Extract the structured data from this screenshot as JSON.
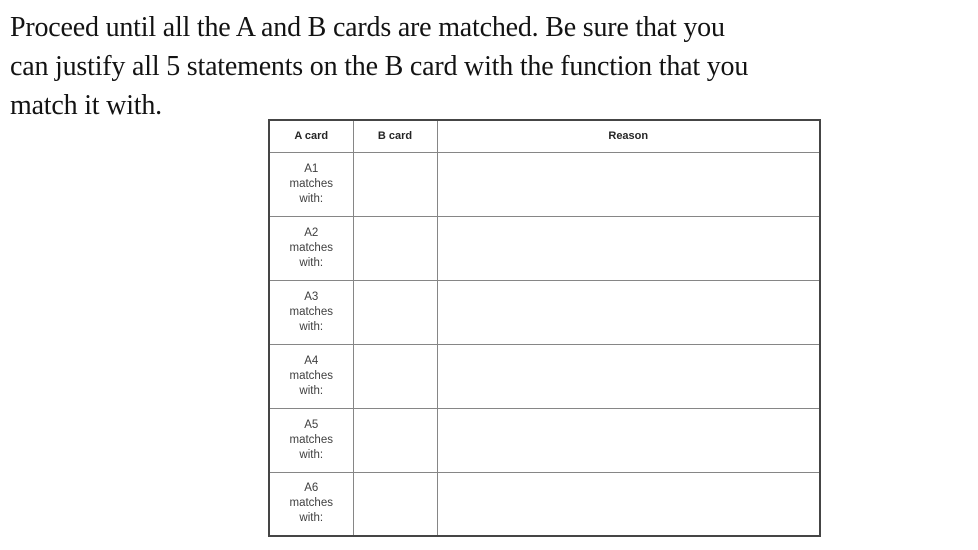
{
  "instructions": {
    "lines": [
      "Proceed until all the A and B cards are matched. Be sure that you",
      "can justify all 5 statements on the B card with the function that you",
      "match it with."
    ]
  },
  "table": {
    "headers": {
      "a_card": "A card",
      "b_card": "B card",
      "reason": "Reason"
    },
    "rows": [
      {
        "lines": [
          "A1",
          "matches",
          "with:"
        ],
        "b_card": "",
        "reason": ""
      },
      {
        "lines": [
          "A2",
          "matches",
          "with:"
        ],
        "b_card": "",
        "reason": ""
      },
      {
        "lines": [
          "A3",
          "matches",
          "with:"
        ],
        "b_card": "",
        "reason": ""
      },
      {
        "lines": [
          "A4",
          "matches",
          "with:"
        ],
        "b_card": "",
        "reason": ""
      },
      {
        "lines": [
          "A5",
          "matches",
          "with:"
        ],
        "b_card": "",
        "reason": ""
      },
      {
        "lines": [
          "A6",
          "matches",
          "with:"
        ],
        "b_card": "",
        "reason": ""
      }
    ]
  },
  "colors": {
    "page_background": "#ffffff",
    "instruction_text": "#131313",
    "cell_text": "#3f3f3f",
    "header_text": "#262626",
    "outer_border": "#454545",
    "inner_border": "#868686"
  }
}
